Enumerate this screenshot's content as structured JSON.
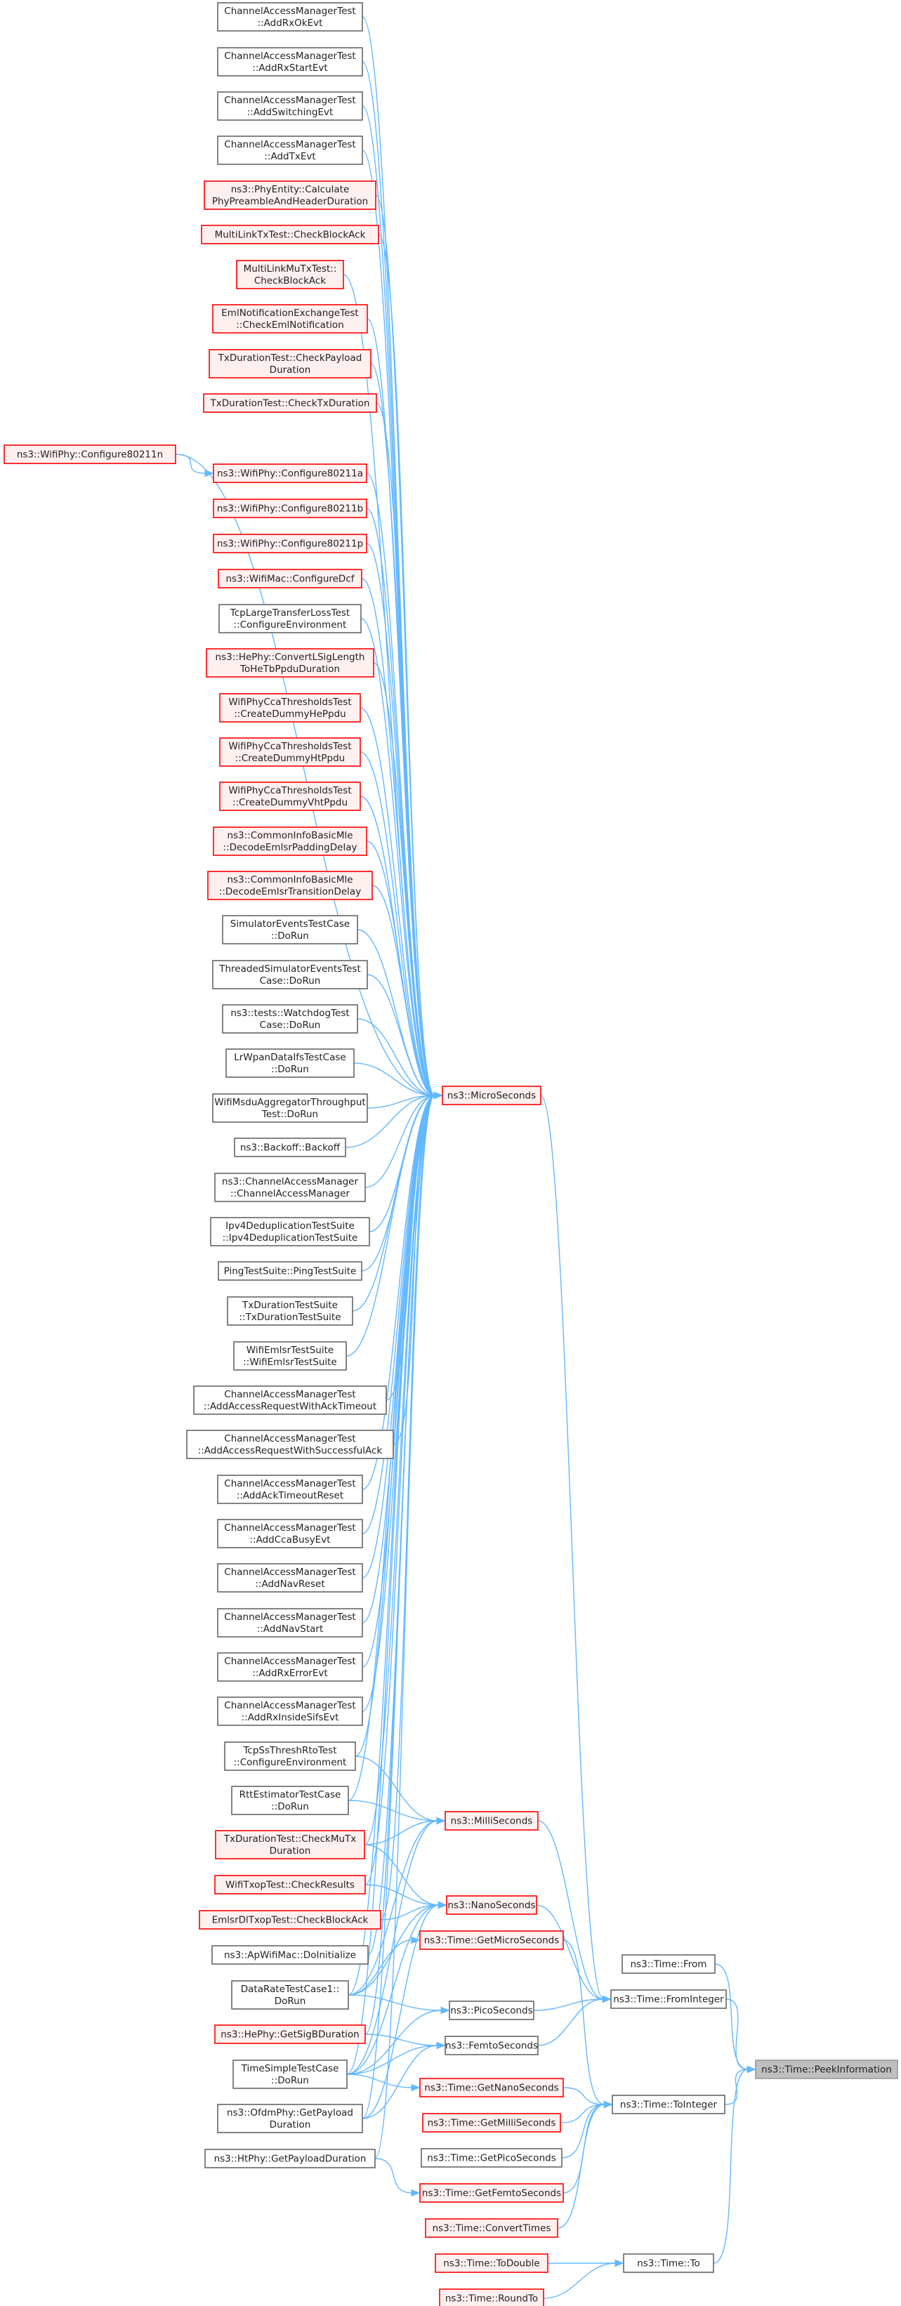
{
  "diagram": {
    "type": "call-graph",
    "nodes": [
      {
        "id": "n1",
        "lines": [
          "ChannelAccessManagerTest",
          "::AddRxOkEvt"
        ],
        "style": "black"
      },
      {
        "id": "n2",
        "lines": [
          "ChannelAccessManagerTest",
          "::AddRxStartEvt"
        ],
        "style": "black"
      },
      {
        "id": "n3",
        "lines": [
          "ChannelAccessManagerTest",
          "::AddSwitchingEvt"
        ],
        "style": "black"
      },
      {
        "id": "n4",
        "lines": [
          "ChannelAccessManagerTest",
          "::AddTxEvt"
        ],
        "style": "black"
      },
      {
        "id": "n5",
        "lines": [
          "ns3::PhyEntity::Calculate",
          "PhyPreambleAndHeaderDuration"
        ],
        "style": "red"
      },
      {
        "id": "n6",
        "lines": [
          "MultiLinkTxTest::CheckBlockAck"
        ],
        "style": "red"
      },
      {
        "id": "n7",
        "lines": [
          "MultiLinkMuTxTest::",
          "CheckBlockAck"
        ],
        "style": "red"
      },
      {
        "id": "n8",
        "lines": [
          "EmlNotificationExchangeTest",
          "::CheckEmlNotification"
        ],
        "style": "red"
      },
      {
        "id": "n9",
        "lines": [
          "TxDurationTest::CheckPayload",
          "Duration"
        ],
        "style": "red"
      },
      {
        "id": "n10",
        "lines": [
          "TxDurationTest::CheckTxDuration"
        ],
        "style": "red"
      },
      {
        "id": "n11",
        "lines": [
          "ns3::WifiPhy::Configure80211n"
        ],
        "style": "red"
      },
      {
        "id": "n12",
        "lines": [
          "ns3::WifiPhy::Configure80211a"
        ],
        "style": "red"
      },
      {
        "id": "n13",
        "lines": [
          "ns3::WifiPhy::Configure80211b"
        ],
        "style": "red"
      },
      {
        "id": "n14",
        "lines": [
          "ns3::WifiPhy::Configure80211p"
        ],
        "style": "red"
      },
      {
        "id": "n15",
        "lines": [
          "ns3::WifiMac::ConfigureDcf"
        ],
        "style": "red"
      },
      {
        "id": "n16",
        "lines": [
          "TcpLargeTransferLossTest",
          "::ConfigureEnvironment"
        ],
        "style": "black"
      },
      {
        "id": "n17",
        "lines": [
          "ns3::HePhy::ConvertLSigLength",
          "ToHeTbPpduDuration"
        ],
        "style": "red"
      },
      {
        "id": "n18",
        "lines": [
          "WifiPhyCcaThresholdsTest",
          "::CreateDummyHePpdu"
        ],
        "style": "red"
      },
      {
        "id": "n19",
        "lines": [
          "WifiPhyCcaThresholdsTest",
          "::CreateDummyHtPpdu"
        ],
        "style": "red"
      },
      {
        "id": "n20",
        "lines": [
          "WifiPhyCcaThresholdsTest",
          "::CreateDummyVhtPpdu"
        ],
        "style": "red"
      },
      {
        "id": "n21",
        "lines": [
          "ns3::CommonInfoBasicMle",
          "::DecodeEmlsrPaddingDelay"
        ],
        "style": "red"
      },
      {
        "id": "n22",
        "lines": [
          "ns3::CommonInfoBasicMle",
          "::DecodeEmlsrTransitionDelay"
        ],
        "style": "red"
      },
      {
        "id": "n23",
        "lines": [
          "SimulatorEventsTestCase",
          "::DoRun"
        ],
        "style": "black"
      },
      {
        "id": "n24",
        "lines": [
          "ThreadedSimulatorEventsTest",
          "Case::DoRun"
        ],
        "style": "black"
      },
      {
        "id": "n25",
        "lines": [
          "ns3::tests::WatchdogTest",
          "Case::DoRun"
        ],
        "style": "black"
      },
      {
        "id": "n26",
        "lines": [
          "LrWpanDataIfsTestCase",
          "::DoRun"
        ],
        "style": "black"
      },
      {
        "id": "n27",
        "lines": [
          "WifiMsduAggregatorThroughput",
          "Test::DoRun"
        ],
        "style": "black"
      },
      {
        "id": "n28",
        "lines": [
          "ns3::Backoff::Backoff"
        ],
        "style": "black"
      },
      {
        "id": "n29",
        "lines": [
          "ns3::ChannelAccessManager",
          "::ChannelAccessManager"
        ],
        "style": "black"
      },
      {
        "id": "n30",
        "lines": [
          "Ipv4DeduplicationTestSuite",
          "::Ipv4DeduplicationTestSuite"
        ],
        "style": "black"
      },
      {
        "id": "n31",
        "lines": [
          "PingTestSuite::PingTestSuite"
        ],
        "style": "black"
      },
      {
        "id": "n32",
        "lines": [
          "TxDurationTestSuite",
          "::TxDurationTestSuite"
        ],
        "style": "black"
      },
      {
        "id": "n33",
        "lines": [
          "WifiEmlsrTestSuite",
          "::WifiEmlsrTestSuite"
        ],
        "style": "black"
      },
      {
        "id": "n34",
        "lines": [
          "ChannelAccessManagerTest",
          "::AddAccessRequestWithAckTimeout"
        ],
        "style": "black"
      },
      {
        "id": "n35",
        "lines": [
          "ChannelAccessManagerTest",
          "::AddAccessRequestWithSuccessfulAck"
        ],
        "style": "black"
      },
      {
        "id": "n36",
        "lines": [
          "ChannelAccessManagerTest",
          "::AddAckTimeoutReset"
        ],
        "style": "black"
      },
      {
        "id": "n37",
        "lines": [
          "ChannelAccessManagerTest",
          "::AddCcaBusyEvt"
        ],
        "style": "black"
      },
      {
        "id": "n38",
        "lines": [
          "ChannelAccessManagerTest",
          "::AddNavReset"
        ],
        "style": "black"
      },
      {
        "id": "n39",
        "lines": [
          "ChannelAccessManagerTest",
          "::AddNavStart"
        ],
        "style": "black"
      },
      {
        "id": "n40",
        "lines": [
          "ChannelAccessManagerTest",
          "::AddRxErrorEvt"
        ],
        "style": "black"
      },
      {
        "id": "n41",
        "lines": [
          "ChannelAccessManagerTest",
          "::AddRxInsideSifsEvt"
        ],
        "style": "black"
      },
      {
        "id": "n42",
        "lines": [
          "TcpSsThreshRtoTest",
          "::ConfigureEnvironment"
        ],
        "style": "black"
      },
      {
        "id": "n43",
        "lines": [
          "RttEstimatorTestCase",
          "::DoRun"
        ],
        "style": "black"
      },
      {
        "id": "n44",
        "lines": [
          "TxDurationTest::CheckMuTx",
          "Duration"
        ],
        "style": "red"
      },
      {
        "id": "n45",
        "lines": [
          "WifiTxopTest::CheckResults"
        ],
        "style": "red"
      },
      {
        "id": "n46",
        "lines": [
          "EmlsrDlTxopTest::CheckBlockAck"
        ],
        "style": "red"
      },
      {
        "id": "n47",
        "lines": [
          "ns3::ApWifiMac::DoInitialize"
        ],
        "style": "black"
      },
      {
        "id": "n48",
        "lines": [
          "DataRateTestCase1::",
          "DoRun"
        ],
        "style": "black"
      },
      {
        "id": "n49",
        "lines": [
          "ns3::HePhy::GetSigBDuration"
        ],
        "style": "red"
      },
      {
        "id": "n50",
        "lines": [
          "TimeSimpleTestCase",
          "::DoRun"
        ],
        "style": "black"
      },
      {
        "id": "n51",
        "lines": [
          "ns3::OfdmPhy::GetPayload",
          "Duration"
        ],
        "style": "black"
      },
      {
        "id": "n52",
        "lines": [
          "ns3::HtPhy::GetPayloadDuration"
        ],
        "style": "black"
      },
      {
        "id": "micro",
        "lines": [
          "ns3::MicroSeconds"
        ],
        "style": "red"
      },
      {
        "id": "milli",
        "lines": [
          "ns3::MilliSeconds"
        ],
        "style": "red"
      },
      {
        "id": "nano",
        "lines": [
          "ns3::NanoSeconds"
        ],
        "style": "red"
      },
      {
        "id": "getmicro",
        "lines": [
          "ns3::Time::GetMicroSeconds"
        ],
        "style": "red"
      },
      {
        "id": "pico",
        "lines": [
          "ns3::PicoSeconds"
        ],
        "style": "black"
      },
      {
        "id": "femto",
        "lines": [
          "ns3::FemtoSeconds"
        ],
        "style": "black"
      },
      {
        "id": "getnano",
        "lines": [
          "ns3::Time::GetNanoSeconds"
        ],
        "style": "red"
      },
      {
        "id": "getmilli",
        "lines": [
          "ns3::Time::GetMilliSeconds"
        ],
        "style": "red"
      },
      {
        "id": "getpico",
        "lines": [
          "ns3::Time::GetPicoSeconds"
        ],
        "style": "black"
      },
      {
        "id": "getfemto",
        "lines": [
          "ns3::Time::GetFemtoSeconds"
        ],
        "style": "red"
      },
      {
        "id": "convert",
        "lines": [
          "ns3::Time::ConvertTimes"
        ],
        "style": "red"
      },
      {
        "id": "todouble",
        "lines": [
          "ns3::Time::ToDouble"
        ],
        "style": "red"
      },
      {
        "id": "roundto",
        "lines": [
          "ns3::Time::RoundTo"
        ],
        "style": "red"
      },
      {
        "id": "from",
        "lines": [
          "ns3::Time::From"
        ],
        "style": "black"
      },
      {
        "id": "fromint",
        "lines": [
          "ns3::Time::FromInteger"
        ],
        "style": "black"
      },
      {
        "id": "toint",
        "lines": [
          "ns3::Time::ToInteger"
        ],
        "style": "black"
      },
      {
        "id": "to",
        "lines": [
          "ns3::Time::To"
        ],
        "style": "black"
      },
      {
        "id": "peek",
        "lines": [
          "ns3::Time::PeekInformation"
        ],
        "style": "focus"
      }
    ],
    "edges": [
      [
        "n1",
        "micro"
      ],
      [
        "n2",
        "micro"
      ],
      [
        "n3",
        "micro"
      ],
      [
        "n4",
        "micro"
      ],
      [
        "n5",
        "micro"
      ],
      [
        "n6",
        "micro"
      ],
      [
        "n7",
        "micro"
      ],
      [
        "n8",
        "micro"
      ],
      [
        "n9",
        "micro"
      ],
      [
        "n10",
        "micro"
      ],
      [
        "n11",
        "micro"
      ],
      [
        "n11",
        "n12"
      ],
      [
        "n12",
        "micro"
      ],
      [
        "n13",
        "micro"
      ],
      [
        "n14",
        "micro"
      ],
      [
        "n15",
        "micro"
      ],
      [
        "n16",
        "micro"
      ],
      [
        "n17",
        "micro"
      ],
      [
        "n18",
        "micro"
      ],
      [
        "n19",
        "micro"
      ],
      [
        "n20",
        "micro"
      ],
      [
        "n21",
        "micro"
      ],
      [
        "n22",
        "micro"
      ],
      [
        "n23",
        "micro"
      ],
      [
        "n24",
        "micro"
      ],
      [
        "n25",
        "micro"
      ],
      [
        "n26",
        "micro"
      ],
      [
        "n27",
        "micro"
      ],
      [
        "n28",
        "micro"
      ],
      [
        "n29",
        "micro"
      ],
      [
        "n30",
        "micro"
      ],
      [
        "n31",
        "micro"
      ],
      [
        "n32",
        "micro"
      ],
      [
        "n33",
        "micro"
      ],
      [
        "n34",
        "micro"
      ],
      [
        "n35",
        "micro"
      ],
      [
        "n36",
        "micro"
      ],
      [
        "n37",
        "micro"
      ],
      [
        "n38",
        "micro"
      ],
      [
        "n39",
        "micro"
      ],
      [
        "n40",
        "micro"
      ],
      [
        "n41",
        "micro"
      ],
      [
        "n42",
        "micro"
      ],
      [
        "n43",
        "micro"
      ],
      [
        "n44",
        "micro"
      ],
      [
        "n45",
        "micro"
      ],
      [
        "n46",
        "micro"
      ],
      [
        "n47",
        "micro"
      ],
      [
        "n48",
        "micro"
      ],
      [
        "n49",
        "micro"
      ],
      [
        "n50",
        "micro"
      ],
      [
        "n51",
        "micro"
      ],
      [
        "n52",
        "micro"
      ],
      [
        "n42",
        "milli"
      ],
      [
        "n43",
        "milli"
      ],
      [
        "n44",
        "milli"
      ],
      [
        "n48",
        "milli"
      ],
      [
        "n50",
        "milli"
      ],
      [
        "n44",
        "nano"
      ],
      [
        "n45",
        "nano"
      ],
      [
        "n46",
        "nano"
      ],
      [
        "n48",
        "nano"
      ],
      [
        "n50",
        "nano"
      ],
      [
        "n51",
        "nano"
      ],
      [
        "n48",
        "getmicro"
      ],
      [
        "n48",
        "pico"
      ],
      [
        "n50",
        "pico"
      ],
      [
        "n49",
        "femto"
      ],
      [
        "n50",
        "femto"
      ],
      [
        "n51",
        "femto"
      ],
      [
        "n50",
        "getnano"
      ],
      [
        "n52",
        "getfemto"
      ],
      [
        "micro",
        "fromint"
      ],
      [
        "milli",
        "fromint"
      ],
      [
        "nano",
        "fromint"
      ],
      [
        "pico",
        "fromint"
      ],
      [
        "femto",
        "fromint"
      ],
      [
        "getmicro",
        "toint"
      ],
      [
        "getnano",
        "toint"
      ],
      [
        "getmilli",
        "toint"
      ],
      [
        "getpico",
        "toint"
      ],
      [
        "getfemto",
        "toint"
      ],
      [
        "convert",
        "toint"
      ],
      [
        "todouble",
        "to"
      ],
      [
        "roundto",
        "to"
      ],
      [
        "from",
        "peek"
      ],
      [
        "fromint",
        "peek"
      ],
      [
        "toint",
        "peek"
      ],
      [
        "to",
        "peek"
      ]
    ]
  },
  "colors": {
    "edge": "#63b8ff",
    "red_border": "#ff0000",
    "red_fill": "#fff0f0",
    "black_border": "#666666",
    "black_fill": "#ffffff",
    "focus_border": "#999999",
    "focus_fill": "#bfbfbf"
  }
}
